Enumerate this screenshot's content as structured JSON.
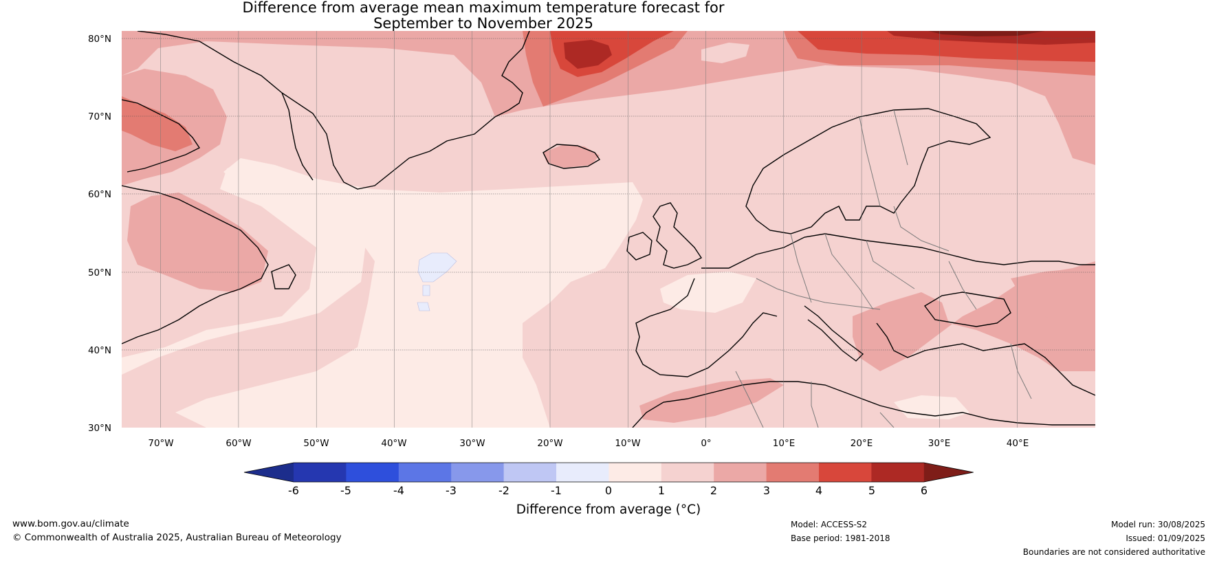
{
  "title": {
    "line1": "Difference from average mean maximum temperature forecast for",
    "line2": "September to November 2025"
  },
  "map": {
    "lat_labels": [
      "80°N",
      "70°N",
      "60°N",
      "50°N",
      "40°N",
      "30°N"
    ],
    "lon_labels": [
      "70°W",
      "60°W",
      "50°W",
      "40°W",
      "30°W",
      "20°W",
      "10°W",
      "0°",
      "10°E",
      "20°E",
      "30°E",
      "40°E"
    ],
    "extent": {
      "lon_min": -75,
      "lon_max": 50,
      "lat_min": 30,
      "lat_max": 80
    }
  },
  "colorbar": {
    "ticks": [
      "-6",
      "-5",
      "-4",
      "-3",
      "-2",
      "-1",
      "0",
      "1",
      "2",
      "3",
      "4",
      "5",
      "6"
    ],
    "colors": [
      "#1c2d8c",
      "#2537b0",
      "#2e4fdc",
      "#5c76e6",
      "#8798eb",
      "#bfc7f4",
      "#e8ecfc",
      "#fdebe6",
      "#f5d2d0",
      "#eba8a6",
      "#e37b72",
      "#d8473b",
      "#ad2924",
      "#7e1d18"
    ],
    "label": "Difference from average (°C)"
  },
  "footer": {
    "url": "www.bom.gov.au/climate",
    "copyright": "© Commonwealth of Australia 2025, Australian Bureau of Meteorology",
    "model": "Model: ACCESS-S2",
    "base_period": "Base period: 1981-2018",
    "model_run": "Model run: 30/08/2025",
    "issued": "Issued: 01/09/2025",
    "disclaimer": "Boundaries are not considered authoritative"
  }
}
